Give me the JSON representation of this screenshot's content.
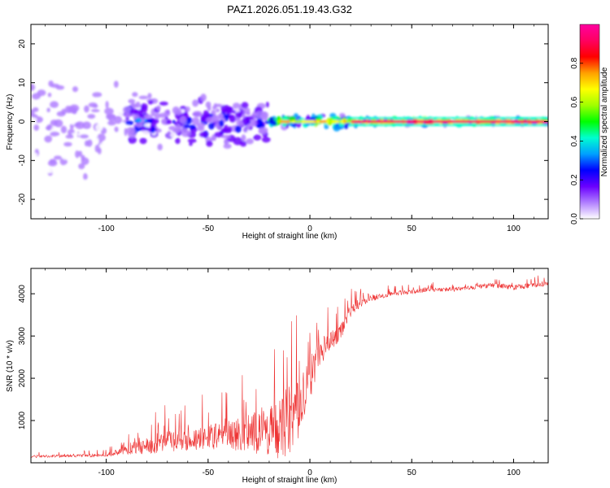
{
  "figure": {
    "title": "PAZ1.2026.051.19.43.G32"
  },
  "chart_data": [
    {
      "type": "heatmap",
      "title": "PAZ1.2026.051.19.43.G32",
      "xlabel": "Height of straight line (km)",
      "ylabel": "Frequency (Hz)",
      "xlim": [
        -137,
        117
      ],
      "ylim": [
        -25,
        25
      ],
      "xticks": [
        -100,
        -50,
        0,
        50,
        100
      ],
      "xtick_labels": [
        "-100",
        "-50",
        "0",
        "50",
        "100"
      ],
      "yticks": [
        -20,
        -10,
        0,
        10,
        20
      ],
      "ytick_labels": [
        "-20",
        "-10",
        "0",
        "10",
        "20"
      ],
      "description_bands": [
        {
          "x_range": [
            -137,
            -90
          ],
          "freq_spread": 25,
          "amplitude": 0.15
        },
        {
          "x_range": [
            -90,
            -20
          ],
          "freq_spread": 8,
          "amplitude": 0.35
        },
        {
          "x_range": [
            -20,
            20
          ],
          "freq_spread": 2,
          "amplitude": 0.75
        },
        {
          "x_range": [
            20,
            117
          ],
          "freq_spread": 1,
          "amplitude": 0.95
        }
      ],
      "colorbar": {
        "label": "Normalized spectral amplitude",
        "range": [
          0.0,
          1.0
        ],
        "ticks": [
          0.0,
          0.2,
          0.4,
          0.6,
          0.8
        ],
        "tick_labels": [
          "0.0",
          "0.2",
          "0.4",
          "0.6",
          "0.8"
        ],
        "colors": [
          "#ffffff",
          "#b07fff",
          "#6a00ff",
          "#0000ff",
          "#00a0ff",
          "#00ffd0",
          "#00ff00",
          "#a0ff00",
          "#ffff00",
          "#ffa000",
          "#ff0000",
          "#ff0060",
          "#ff00a0"
        ]
      }
    },
    {
      "type": "line",
      "xlabel": "Height of straight line (km)",
      "ylabel": "SNR (10 * v/v)",
      "xlim": [
        -137,
        117
      ],
      "ylim": [
        0,
        4600
      ],
      "xticks": [
        -100,
        -50,
        0,
        50,
        100
      ],
      "xtick_labels": [
        "-100",
        "-50",
        "0",
        "50",
        "100"
      ],
      "yticks": [
        1000,
        2000,
        3000,
        4000
      ],
      "ytick_labels": [
        "1000",
        "2000",
        "3000",
        "4000"
      ],
      "series": [
        {
          "name": "SNR",
          "color": "#ee3333",
          "x": [
            -137,
            -120,
            -100,
            -90,
            -80,
            -70,
            -60,
            -50,
            -40,
            -30,
            -20,
            -15,
            -10,
            -5,
            0,
            5,
            10,
            15,
            20,
            25,
            30,
            40,
            50,
            60,
            70,
            80,
            90,
            100,
            110,
            117
          ],
          "baseline": [
            150,
            160,
            180,
            300,
            400,
            500,
            550,
            600,
            650,
            700,
            750,
            800,
            1000,
            1300,
            2000,
            2600,
            2900,
            3100,
            3600,
            3800,
            3900,
            4000,
            4050,
            4100,
            4100,
            4150,
            4200,
            4150,
            4200,
            4250
          ],
          "noise": [
            60,
            60,
            80,
            200,
            400,
            500,
            500,
            600,
            700,
            900,
            1200,
            1500,
            1700,
            1500,
            1000,
            700,
            500,
            400,
            300,
            200,
            150,
            120,
            100,
            100,
            100,
            100,
            120,
            120,
            120,
            150
          ]
        }
      ]
    }
  ]
}
